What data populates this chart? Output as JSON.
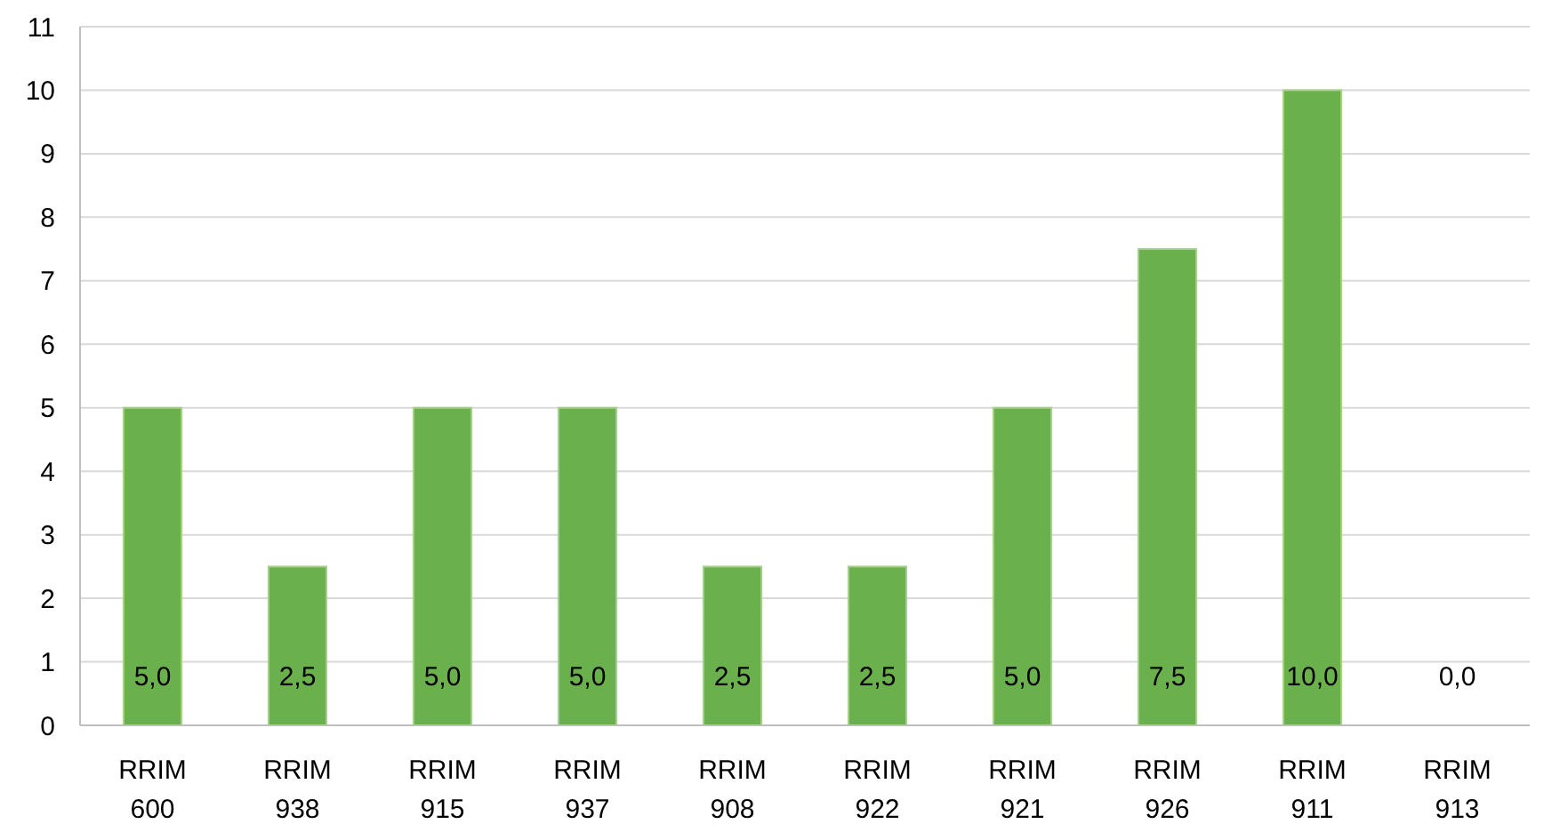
{
  "chart_data": {
    "type": "bar",
    "categories": [
      "RRIM 600",
      "RRIM 938",
      "RRIM 915",
      "RRIM 937",
      "RRIM 908",
      "RRIM 922",
      "RRIM 921",
      "RRIM 926",
      "RRIM 911",
      "RRIM 913"
    ],
    "values": [
      5,
      2.5,
      5,
      5,
      2.5,
      2.5,
      5,
      7.5,
      10,
      0
    ],
    "value_labels": [
      "5,0",
      "2,5",
      "5,0",
      "5,0",
      "2,5",
      "2,5",
      "5,0",
      "7,5",
      "10,0",
      "0,0"
    ],
    "color": "#6ab04c",
    "ylim": [
      0,
      11
    ],
    "yticks": [
      0,
      1,
      2,
      3,
      4,
      5,
      6,
      7,
      8,
      9,
      10,
      11
    ],
    "grid": "y"
  }
}
